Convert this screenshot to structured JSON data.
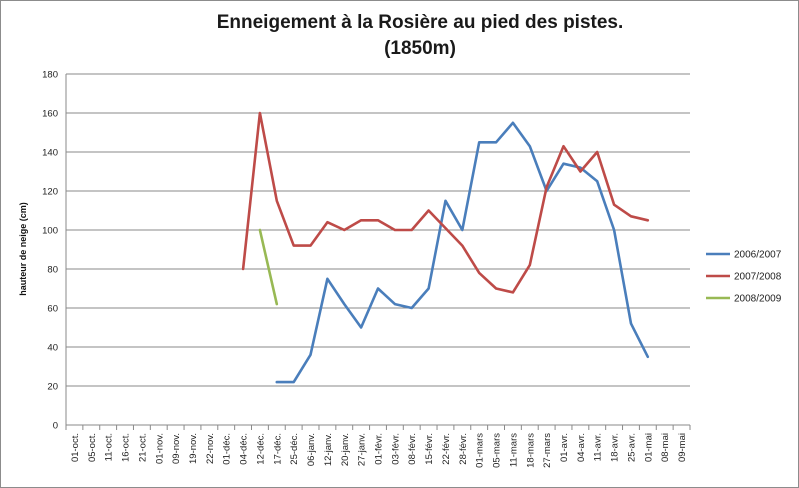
{
  "chart_data": {
    "type": "line",
    "title_line1": "Enneigement à la Rosière au pied des pistes.",
    "title_line2": "(1850m)",
    "ylabel": "hauteur de neige (cm)",
    "ylim": [
      0,
      180
    ],
    "yticks": [
      0,
      20,
      40,
      60,
      80,
      100,
      120,
      140,
      160,
      180
    ],
    "grid": true,
    "legend_position": "right",
    "categories": [
      "01-oct.",
      "05-oct.",
      "11-oct.",
      "16-oct.",
      "21-oct.",
      "01-nov.",
      "09-nov.",
      "19-nov.",
      "22-nov.",
      "01-déc.",
      "04-déc.",
      "12-déc.",
      "17-déc.",
      "25-déc.",
      "06-janv.",
      "12-janv.",
      "20-janv.",
      "27-janv.",
      "01-févr.",
      "03-févr.",
      "08-févr.",
      "15-févr.",
      "22-févr.",
      "28-févr.",
      "01-mars",
      "05-mars",
      "11-mars",
      "18-mars",
      "27-mars",
      "01-avr.",
      "04-avr.",
      "11-avr.",
      "18-avr.",
      "25-avr.",
      "01-mai",
      "08-mai",
      "09-mai"
    ],
    "series": [
      {
        "name": "2006/2007",
        "color": "#4a7ebb",
        "points": [
          [
            12,
            22
          ],
          [
            13,
            22
          ],
          [
            14,
            36
          ],
          [
            15,
            75
          ],
          [
            16,
            62
          ],
          [
            17,
            50
          ],
          [
            18,
            70
          ],
          [
            19,
            62
          ],
          [
            20,
            60
          ],
          [
            21,
            70
          ],
          [
            22,
            115
          ],
          [
            23,
            100
          ],
          [
            24,
            145
          ],
          [
            25,
            145
          ],
          [
            26,
            155
          ],
          [
            27,
            143
          ],
          [
            28,
            120
          ],
          [
            29,
            134
          ],
          [
            30,
            132
          ],
          [
            31,
            125
          ],
          [
            32,
            100
          ],
          [
            33,
            52
          ],
          [
            34,
            35
          ]
        ]
      },
      {
        "name": "2007/2008",
        "color": "#be4b48",
        "points": [
          [
            10,
            80
          ],
          [
            11,
            160
          ],
          [
            12,
            115
          ],
          [
            13,
            92
          ],
          [
            14,
            92
          ],
          [
            15,
            104
          ],
          [
            16,
            100
          ],
          [
            17,
            105
          ],
          [
            18,
            105
          ],
          [
            19,
            100
          ],
          [
            20,
            100
          ],
          [
            21,
            110
          ],
          [
            22,
            101
          ],
          [
            23,
            92
          ],
          [
            24,
            78
          ],
          [
            25,
            70
          ],
          [
            26,
            68
          ],
          [
            27,
            82
          ],
          [
            28,
            122
          ],
          [
            29,
            143
          ],
          [
            30,
            130
          ],
          [
            31,
            140
          ],
          [
            32,
            113
          ],
          [
            33,
            107
          ],
          [
            34,
            105
          ]
        ]
      },
      {
        "name": "2008/2009",
        "color": "#98b954",
        "points": [
          [
            11,
            100
          ],
          [
            12,
            62
          ]
        ]
      }
    ]
  }
}
